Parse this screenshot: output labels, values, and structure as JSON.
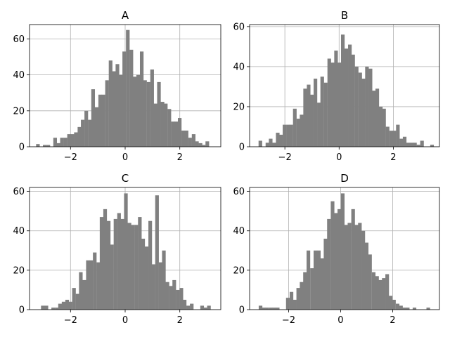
{
  "chart_data": [
    {
      "type": "bar",
      "title": "A",
      "bin_width": 0.126,
      "xlim": [
        -3.5,
        3.5
      ],
      "ylim": [
        0,
        68
      ],
      "xticks": [
        -2,
        0,
        2
      ],
      "xtick_labels": [
        "−2",
        "0",
        "2"
      ],
      "yticks": [
        0,
        20,
        40,
        60
      ],
      "ytick_labels": [
        "0",
        "20",
        "40",
        "60"
      ],
      "grid": true,
      "color": "#808080",
      "grid_color": "#b0b0b0",
      "bins": [
        [
          -3.26,
          1.5
        ],
        [
          -3.13,
          0
        ],
        [
          -3.01,
          1
        ],
        [
          -2.88,
          1
        ],
        [
          -2.76,
          0
        ],
        [
          -2.63,
          5
        ],
        [
          -2.5,
          2
        ],
        [
          -2.38,
          5
        ],
        [
          -2.25,
          5
        ],
        [
          -2.12,
          7
        ],
        [
          -2.0,
          7
        ],
        [
          -1.87,
          8
        ],
        [
          -1.74,
          11
        ],
        [
          -1.62,
          15
        ],
        [
          -1.49,
          20
        ],
        [
          -1.36,
          15
        ],
        [
          -1.24,
          32
        ],
        [
          -1.11,
          22
        ],
        [
          -0.98,
          29
        ],
        [
          -0.86,
          29
        ],
        [
          -0.73,
          37
        ],
        [
          -0.6,
          48
        ],
        [
          -0.48,
          42
        ],
        [
          -0.35,
          46
        ],
        [
          -0.22,
          40
        ],
        [
          -0.1,
          53
        ],
        [
          0.03,
          65
        ],
        [
          0.16,
          54
        ],
        [
          0.28,
          39
        ],
        [
          0.41,
          40
        ],
        [
          0.54,
          53
        ],
        [
          0.66,
          37
        ],
        [
          0.79,
          36
        ],
        [
          0.92,
          43
        ],
        [
          1.04,
          24
        ],
        [
          1.17,
          36
        ],
        [
          1.3,
          25
        ],
        [
          1.42,
          24
        ],
        [
          1.55,
          21
        ],
        [
          1.68,
          14
        ],
        [
          1.8,
          14
        ],
        [
          1.93,
          16
        ],
        [
          2.06,
          9
        ],
        [
          2.18,
          9
        ],
        [
          2.31,
          5
        ],
        [
          2.44,
          7
        ],
        [
          2.56,
          3
        ],
        [
          2.69,
          2
        ],
        [
          2.81,
          1
        ],
        [
          2.94,
          3
        ]
      ]
    },
    {
      "type": "bar",
      "title": "B",
      "bin_width": 0.126,
      "xlim": [
        -3.3,
        3.7
      ],
      "ylim": [
        0,
        61
      ],
      "xticks": [
        -2,
        0,
        2
      ],
      "xtick_labels": [
        "−2",
        "0",
        "2"
      ],
      "yticks": [
        0,
        20,
        40,
        60
      ],
      "ytick_labels": [
        "0",
        "20",
        "40",
        "60"
      ],
      "grid": true,
      "color": "#808080",
      "grid_color": "#b0b0b0",
      "bins": [
        [
          -2.97,
          3
        ],
        [
          -2.84,
          0
        ],
        [
          -2.71,
          2
        ],
        [
          -2.59,
          4
        ],
        [
          -2.46,
          2
        ],
        [
          -2.33,
          7
        ],
        [
          -2.21,
          6
        ],
        [
          -2.08,
          11
        ],
        [
          -1.95,
          11
        ],
        [
          -1.83,
          11
        ],
        [
          -1.7,
          19
        ],
        [
          -1.57,
          14
        ],
        [
          -1.45,
          16
        ],
        [
          -1.32,
          29
        ],
        [
          -1.19,
          31
        ],
        [
          -1.07,
          26
        ],
        [
          -0.94,
          34
        ],
        [
          -0.81,
          22
        ],
        [
          -0.69,
          35
        ],
        [
          -0.56,
          32
        ],
        [
          -0.43,
          44
        ],
        [
          -0.31,
          42
        ],
        [
          -0.18,
          48
        ],
        [
          -0.05,
          42
        ],
        [
          0.07,
          56
        ],
        [
          0.2,
          49
        ],
        [
          0.33,
          51
        ],
        [
          0.45,
          46
        ],
        [
          0.58,
          40
        ],
        [
          0.71,
          37
        ],
        [
          0.83,
          34
        ],
        [
          0.96,
          40
        ],
        [
          1.09,
          39
        ],
        [
          1.21,
          28
        ],
        [
          1.34,
          29
        ],
        [
          1.47,
          20
        ],
        [
          1.59,
          19
        ],
        [
          1.72,
          10
        ],
        [
          1.85,
          8
        ],
        [
          1.97,
          8
        ],
        [
          2.1,
          11
        ],
        [
          2.23,
          4
        ],
        [
          2.35,
          5
        ],
        [
          2.48,
          2
        ],
        [
          2.61,
          2
        ],
        [
          2.73,
          2
        ],
        [
          2.86,
          1
        ],
        [
          2.99,
          3
        ],
        [
          3.11,
          0
        ],
        [
          3.24,
          0
        ],
        [
          3.36,
          1
        ]
      ]
    },
    {
      "type": "bar",
      "title": "C",
      "bin_width": 0.126,
      "xlim": [
        -3.5,
        3.5
      ],
      "ylim": [
        0,
        62
      ],
      "xticks": [
        -2,
        0,
        2
      ],
      "xtick_labels": [
        "−2",
        "0",
        "2"
      ],
      "yticks": [
        0,
        20,
        40,
        60
      ],
      "ytick_labels": [
        "0",
        "20",
        "40",
        "60"
      ],
      "grid": true,
      "color": "#808080",
      "grid_color": "#b0b0b0",
      "bins": [
        [
          -3.08,
          2
        ],
        [
          -2.95,
          2
        ],
        [
          -2.83,
          0
        ],
        [
          -2.7,
          1
        ],
        [
          -2.57,
          1
        ],
        [
          -2.45,
          3
        ],
        [
          -2.32,
          4
        ],
        [
          -2.19,
          5
        ],
        [
          -2.07,
          4
        ],
        [
          -1.94,
          11
        ],
        [
          -1.81,
          8
        ],
        [
          -1.69,
          19
        ],
        [
          -1.56,
          15
        ],
        [
          -1.43,
          25
        ],
        [
          -1.31,
          25
        ],
        [
          -1.18,
          29
        ],
        [
          -1.05,
          24
        ],
        [
          -0.93,
          47
        ],
        [
          -0.8,
          51
        ],
        [
          -0.67,
          45
        ],
        [
          -0.55,
          33
        ],
        [
          -0.42,
          46
        ],
        [
          -0.29,
          49
        ],
        [
          -0.17,
          46
        ],
        [
          -0.04,
          59
        ],
        [
          0.09,
          44
        ],
        [
          0.21,
          43
        ],
        [
          0.34,
          43
        ],
        [
          0.47,
          47
        ],
        [
          0.59,
          36
        ],
        [
          0.72,
          32
        ],
        [
          0.85,
          45
        ],
        [
          0.97,
          23
        ],
        [
          1.1,
          58
        ],
        [
          1.23,
          24
        ],
        [
          1.35,
          30
        ],
        [
          1.48,
          14
        ],
        [
          1.61,
          12
        ],
        [
          1.73,
          15
        ],
        [
          1.86,
          10
        ],
        [
          1.99,
          11
        ],
        [
          2.11,
          5
        ],
        [
          2.24,
          2
        ],
        [
          2.37,
          3
        ],
        [
          2.49,
          0
        ],
        [
          2.62,
          0
        ],
        [
          2.75,
          2
        ],
        [
          2.87,
          1
        ],
        [
          3.0,
          2
        ]
      ]
    },
    {
      "type": "bar",
      "title": "D",
      "bin_width": 0.132,
      "xlim": [
        -3.5,
        3.8
      ],
      "ylim": [
        0,
        62
      ],
      "xticks": [
        -2,
        0,
        2
      ],
      "xtick_labels": [
        "−2",
        "0",
        "2"
      ],
      "yticks": [
        0,
        20,
        40,
        60
      ],
      "ytick_labels": [
        "0",
        "20",
        "40",
        "60"
      ],
      "grid": true,
      "color": "#808080",
      "grid_color": "#b0b0b0",
      "bins": [
        [
          -3.15,
          2
        ],
        [
          -3.02,
          1
        ],
        [
          -2.89,
          1
        ],
        [
          -2.75,
          1
        ],
        [
          -2.62,
          1
        ],
        [
          -2.49,
          1
        ],
        [
          -2.36,
          0
        ],
        [
          -2.23,
          0
        ],
        [
          -2.1,
          6
        ],
        [
          -1.96,
          9
        ],
        [
          -1.83,
          5
        ],
        [
          -1.7,
          11
        ],
        [
          -1.57,
          14
        ],
        [
          -1.44,
          19
        ],
        [
          -1.31,
          30
        ],
        [
          -1.17,
          21
        ],
        [
          -1.04,
          30
        ],
        [
          -0.91,
          30
        ],
        [
          -0.78,
          26
        ],
        [
          -0.65,
          36
        ],
        [
          -0.52,
          46
        ],
        [
          -0.38,
          55
        ],
        [
          -0.25,
          49
        ],
        [
          -0.12,
          51
        ],
        [
          0.01,
          59
        ],
        [
          0.14,
          43
        ],
        [
          0.27,
          44
        ],
        [
          0.41,
          51
        ],
        [
          0.54,
          43
        ],
        [
          0.67,
          44
        ],
        [
          0.8,
          40
        ],
        [
          0.93,
          34
        ],
        [
          1.06,
          28
        ],
        [
          1.2,
          19
        ],
        [
          1.33,
          17
        ],
        [
          1.46,
          15
        ],
        [
          1.59,
          16
        ],
        [
          1.72,
          18
        ],
        [
          1.85,
          7
        ],
        [
          1.98,
          5
        ],
        [
          2.12,
          3
        ],
        [
          2.25,
          2
        ],
        [
          2.38,
          1
        ],
        [
          2.51,
          1
        ],
        [
          2.64,
          0
        ],
        [
          2.77,
          1
        ],
        [
          2.91,
          0
        ],
        [
          3.04,
          0
        ],
        [
          3.17,
          0
        ],
        [
          3.3,
          1
        ]
      ]
    }
  ]
}
